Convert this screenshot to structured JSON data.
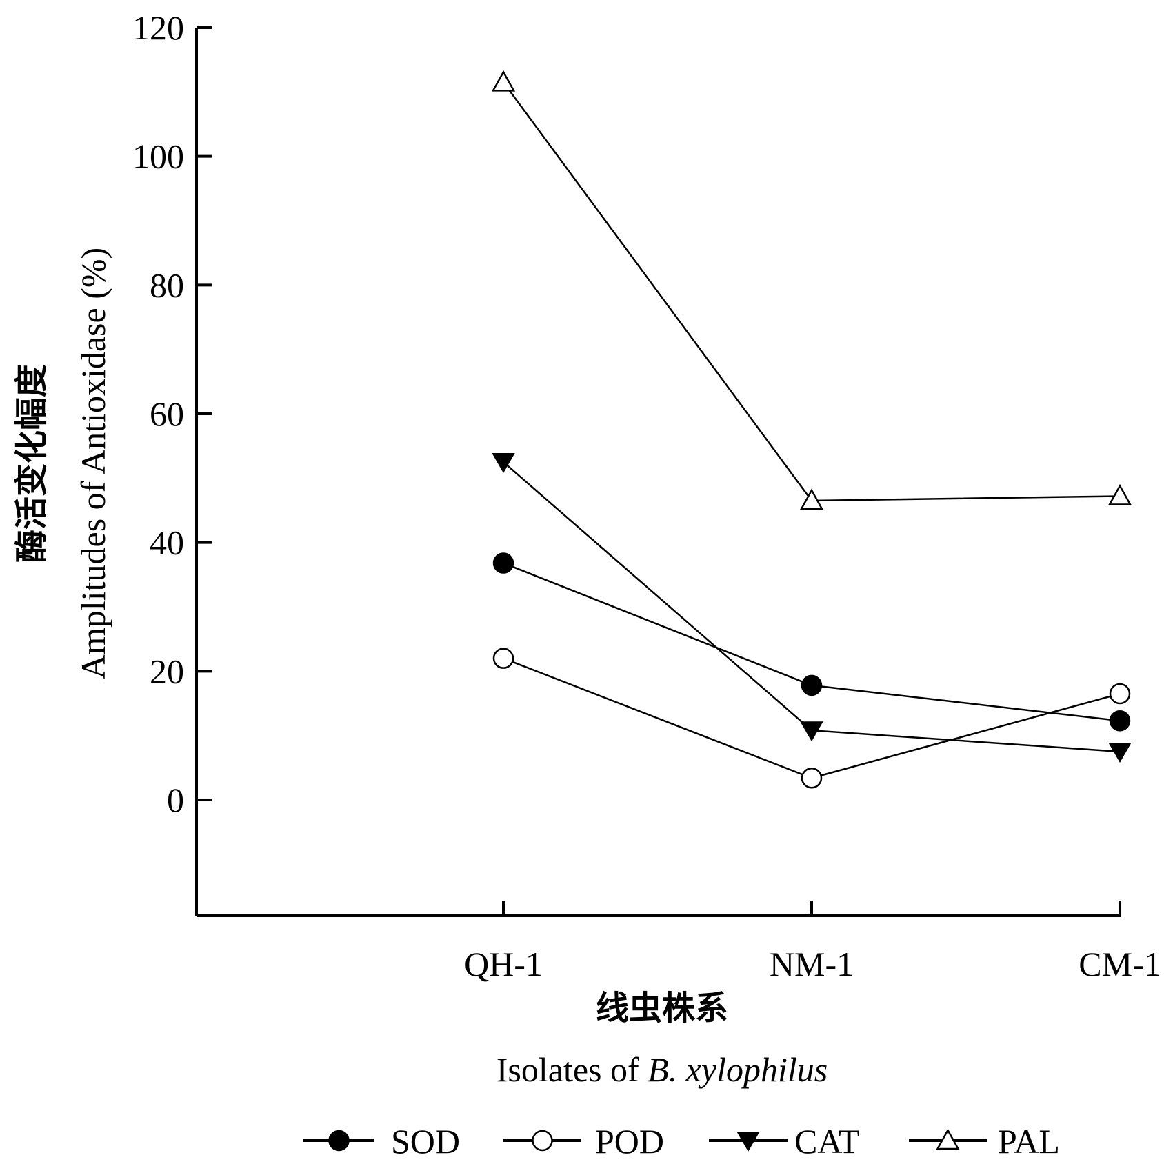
{
  "chart_data": {
    "type": "line",
    "categories": [
      "QH-1",
      "NM-1",
      "CM-1"
    ],
    "ylim": [
      -18,
      120
    ],
    "yticks": [
      0,
      20,
      40,
      60,
      80,
      100,
      120
    ],
    "ylabel_cn": "酶活变化幅度",
    "ylabel_en": "Amplitudes of Antioxidase (%)",
    "xlabel_cn": "线虫株系",
    "xlabel_en_prefix": "Isolates of ",
    "xlabel_en_italic": "B. xylophilus",
    "grid": false,
    "legend_position": "bottom",
    "series": [
      {
        "name": "SOD",
        "marker": "circle-filled",
        "values": [
          36.8,
          17.8,
          12.3
        ]
      },
      {
        "name": "POD",
        "marker": "circle-open",
        "values": [
          22.0,
          3.4,
          16.5
        ]
      },
      {
        "name": "CAT",
        "marker": "triangle-down-filled",
        "values": [
          52.5,
          10.8,
          7.5
        ]
      },
      {
        "name": "PAL",
        "marker": "triangle-up-open",
        "values": [
          111.5,
          46.5,
          47.2
        ]
      }
    ]
  }
}
